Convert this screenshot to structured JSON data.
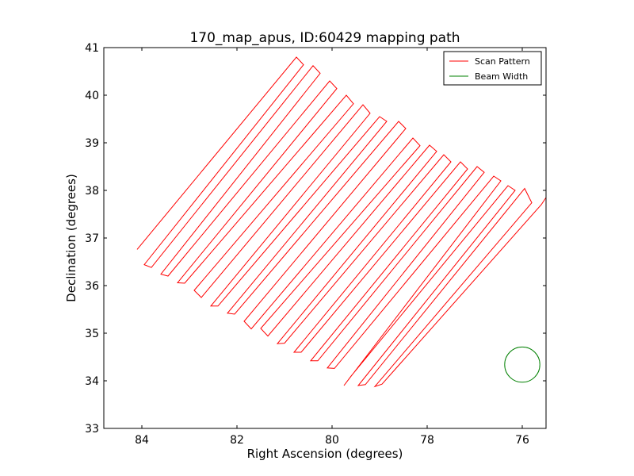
{
  "chart_data": {
    "type": "line",
    "title": "170_map_apus, ID:60429 mapping path",
    "xlabel": "Right Ascension (degrees)",
    "ylabel": "Declination (degrees)",
    "xlim": [
      84.8,
      75.5
    ],
    "ylim": [
      33,
      41
    ],
    "x_ticks": [
      84,
      82,
      80,
      78,
      76
    ],
    "y_ticks": [
      33,
      34,
      35,
      36,
      37,
      38,
      39,
      40,
      41
    ],
    "x_tick_labels": [
      "84",
      "82",
      "80",
      "78",
      "76"
    ],
    "y_tick_labels": [
      "33",
      "34",
      "35",
      "36",
      "37",
      "38",
      "39",
      "40",
      "41"
    ],
    "grid": false,
    "legend_position": "top-right",
    "colors": {
      "scan": "#ff0000",
      "beam": "#008000",
      "axes": "#000000"
    },
    "series": [
      {
        "name": "Scan Pattern",
        "type": "line",
        "x": [
          84.1,
          80.75,
          80.6,
          83.95,
          83.8,
          80.4,
          80.25,
          83.6,
          83.45,
          80.05,
          79.9,
          83.25,
          83.1,
          79.7,
          79.55,
          82.9,
          82.75,
          79.35,
          79.2,
          82.55,
          82.4,
          79.0,
          78.85,
          82.2,
          82.05,
          78.6,
          78.45,
          81.85,
          81.7,
          78.3,
          78.15,
          81.5,
          81.35,
          77.95,
          77.8,
          81.15,
          81.0,
          77.65,
          77.5,
          80.8,
          80.65,
          77.3,
          77.15,
          80.45,
          80.3,
          76.95,
          76.8,
          80.1,
          79.95,
          76.6,
          76.45,
          79.75,
          79.6,
          76.3,
          76.15,
          79.45,
          79.3,
          75.95,
          75.8,
          79.1,
          78.95,
          75.6,
          75.5
        ],
        "y": [
          36.76,
          40.8,
          40.64,
          36.44,
          36.38,
          40.62,
          40.46,
          36.24,
          36.2,
          40.3,
          40.14,
          36.06,
          36.05,
          40.0,
          39.82,
          35.9,
          35.75,
          39.8,
          39.62,
          35.57,
          35.57,
          39.55,
          39.45,
          35.42,
          35.4,
          39.45,
          39.3,
          35.25,
          35.09,
          39.1,
          38.94,
          35.1,
          34.94,
          38.95,
          38.82,
          34.78,
          34.79,
          38.75,
          38.6,
          34.6,
          34.6,
          38.6,
          38.45,
          34.42,
          34.42,
          38.5,
          38.38,
          34.27,
          34.26,
          38.3,
          38.2,
          33.9,
          34.1,
          38.1,
          38.0,
          33.9,
          33.92,
          38.04,
          37.74,
          33.88,
          33.93,
          37.7,
          37.85
        ]
      },
      {
        "name": "Beam Width",
        "type": "circle",
        "center": [
          76.0,
          34.34
        ],
        "radius_deg": 0.37
      }
    ]
  }
}
